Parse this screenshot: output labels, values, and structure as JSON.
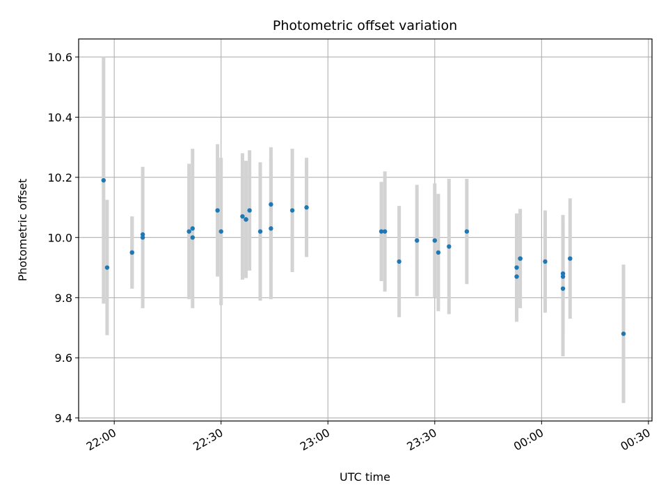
{
  "chart_data": {
    "type": "scatter",
    "title": "Photometric offset variation",
    "xlabel": "UTC time",
    "ylabel": "Photometric offset",
    "grid": true,
    "x_ticks": [
      "22:00",
      "22:30",
      "23:00",
      "23:30",
      "00:00",
      "00:30"
    ],
    "y_ticks": [
      "9.4",
      "9.6",
      "9.8",
      "10.0",
      "10.2",
      "10.4",
      "10.6"
    ],
    "xlim": [
      "21:50",
      "00:31"
    ],
    "ylim": [
      9.39,
      10.66
    ],
    "colors": {
      "points": "#1f77b4",
      "errorbars": "#d3d3d3",
      "grid": "#b0b0b0"
    },
    "series": [
      {
        "points": [
          {
            "x": "21:57",
            "y": 10.19,
            "err": 0.41
          },
          {
            "x": "21:58",
            "y": 9.9,
            "err": 0.225
          },
          {
            "x": "22:05",
            "y": 9.95,
            "err": 0.12
          },
          {
            "x": "22:05",
            "y": 9.95,
            "err": 0.12
          },
          {
            "x": "22:08",
            "y": 10.01,
            "err": 0.0
          },
          {
            "x": "22:08",
            "y": 10.0,
            "err": 0.235
          },
          {
            "x": "22:21",
            "y": 10.02,
            "err": 0.225
          },
          {
            "x": "22:22",
            "y": 10.0,
            "err": 0.0
          },
          {
            "x": "22:22",
            "y": 10.03,
            "err": 0.265
          },
          {
            "x": "22:29",
            "y": 10.09,
            "err": 0.22
          },
          {
            "x": "22:30",
            "y": 10.02,
            "err": 0.245
          },
          {
            "x": "22:36",
            "y": 10.07,
            "err": 0.21
          },
          {
            "x": "22:37",
            "y": 10.06,
            "err": 0.195
          },
          {
            "x": "22:37",
            "y": 10.06,
            "err": 0.0
          },
          {
            "x": "22:38",
            "y": 10.09,
            "err": 0.2
          },
          {
            "x": "22:41",
            "y": 10.02,
            "err": 0.23
          },
          {
            "x": "22:44",
            "y": 10.11,
            "err": 0.19
          },
          {
            "x": "22:44",
            "y": 10.03,
            "err": 0.235
          },
          {
            "x": "22:50",
            "y": 10.09,
            "err": 0.205
          },
          {
            "x": "22:54",
            "y": 10.1,
            "err": 0.165
          },
          {
            "x": "23:15",
            "y": 10.02,
            "err": 0.165
          },
          {
            "x": "23:16",
            "y": 10.02,
            "err": 0.2
          },
          {
            "x": "23:20",
            "y": 9.92,
            "err": 0.185
          },
          {
            "x": "23:25",
            "y": 9.99,
            "err": 0.185
          },
          {
            "x": "23:30",
            "y": 9.99,
            "err": 0.19
          },
          {
            "x": "23:31",
            "y": 9.95,
            "err": 0.195
          },
          {
            "x": "23:34",
            "y": 9.97,
            "err": 0.225
          },
          {
            "x": "23:39",
            "y": 10.02,
            "err": 0.175
          },
          {
            "x": "23:53",
            "y": 9.87,
            "err": 0.15
          },
          {
            "x": "23:53",
            "y": 9.9,
            "err": 0.18
          },
          {
            "x": "23:54",
            "y": 9.93,
            "err": 0.165
          },
          {
            "x": "23:54",
            "y": 9.93,
            "err": 0.0
          },
          {
            "x": "00:01",
            "y": 9.92,
            "err": 0.17
          },
          {
            "x": "00:06",
            "y": 9.83,
            "err": 0.225
          },
          {
            "x": "00:06",
            "y": 9.87,
            "err": 0.19
          },
          {
            "x": "00:06",
            "y": 9.88,
            "err": 0.195
          },
          {
            "x": "00:08",
            "y": 9.93,
            "err": 0.2
          },
          {
            "x": "00:23",
            "y": 9.68,
            "err": 0.23
          }
        ]
      }
    ]
  }
}
